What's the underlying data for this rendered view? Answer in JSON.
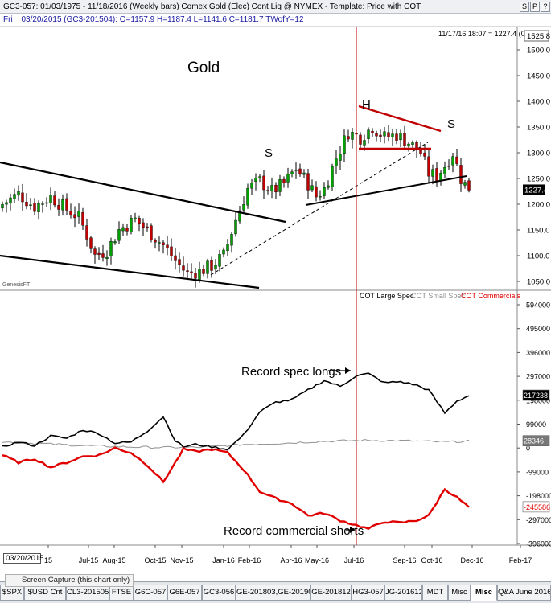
{
  "window": {
    "title": "GC3-057:  01/03/1975 - 11/18/2016  (Weekly bars)   Comex Gold (Elec) Cont Liq @ NYMEX  -  Template: Price with COT",
    "buttons": [
      "S",
      "P",
      "?"
    ]
  },
  "infobar": {
    "day": "Fri",
    "values": "03/20/2015 (GC3-201504):  O=1157.9  H=1187.4  L=1141.6  C=1181.7  TWofY=12"
  },
  "price_panel": {
    "header_stamp": "11/17/16 18:07 = 1227.4 (0.0)",
    "top_box": "1525.8",
    "last_price_box": "1227.4",
    "watermark": "GenesisFT",
    "annotations": {
      "title": "Gold",
      "head": "H",
      "left_shoulder": "S",
      "right_shoulder": "S"
    }
  },
  "cot_panel": {
    "legend": {
      "large": "COT Large Spec",
      "small": "COT Small Spec",
      "commercials": "COT Commercials"
    },
    "annotations": {
      "spec_longs": "Record spec longs",
      "comm_shorts": "Record commercial shorts"
    },
    "value_boxes": {
      "large": "217238",
      "small": "28346",
      "commercials": "-245586"
    }
  },
  "bottom": {
    "date_box": "03/20/2015",
    "screen_capture": "Screen Capture (this chart only)",
    "tabs": [
      "$SPX",
      "$USD Cnt",
      "CL3-201505",
      "FTSE",
      "G6C-057",
      "G6E-057",
      "GC3-056",
      "GE-201803,GE-201909",
      "GE-201812",
      "HG3-057",
      "JG-201612",
      "MDT",
      "Misc",
      "Misc",
      "Q&A June 2016"
    ],
    "active_tab": "Misc"
  },
  "colors": {
    "candle_up": "#00a000",
    "candle_down": "#c00000",
    "commercials": "#e00000",
    "small_spec": "#909090",
    "large_spec": "#000000",
    "marker_line": "#c00000",
    "label_blue": "#1a1aa0"
  },
  "chart_data": [
    {
      "type": "candlestick",
      "title": "Gold",
      "x_ticks": [
        "15",
        "Jul-15",
        "Aug-15",
        "Oct-15",
        "Nov-15",
        "Jan-16",
        "Feb-16",
        "Apr-16",
        "May-16",
        "Jul-16",
        "Sep-16",
        "Oct-16",
        "Dec-16",
        "Feb-17"
      ],
      "y_ticks": [
        1500,
        1450,
        1400,
        1350,
        1300,
        1250,
        1200,
        1150,
        1100,
        1050
      ],
      "ylim": [
        1040,
        1520
      ],
      "close_path": [
        [
          0,
          1200
        ],
        [
          4,
          1220
        ],
        [
          8,
          1195
        ],
        [
          12,
          1215
        ],
        [
          16,
          1190
        ],
        [
          19,
          1175
        ],
        [
          21,
          1140
        ],
        [
          23,
          1100
        ],
        [
          26,
          1110
        ],
        [
          29,
          1150
        ],
        [
          33,
          1170
        ],
        [
          36,
          1150
        ],
        [
          40,
          1120
        ],
        [
          43,
          1090
        ],
        [
          46,
          1065
        ],
        [
          49,
          1070
        ],
        [
          52,
          1080
        ],
        [
          55,
          1100
        ],
        [
          58,
          1170
        ],
        [
          61,
          1230
        ],
        [
          64,
          1245
        ],
        [
          67,
          1225
        ],
        [
          70,
          1240
        ],
        [
          73,
          1270
        ],
        [
          76,
          1240
        ],
        [
          78,
          1215
        ],
        [
          80,
          1230
        ],
        [
          83,
          1290
        ],
        [
          86,
          1340
        ],
        [
          89,
          1330
        ],
        [
          92,
          1350
        ],
        [
          95,
          1330
        ],
        [
          98,
          1335
        ],
        [
          101,
          1320
        ],
        [
          104,
          1300
        ],
        [
          106,
          1260
        ],
        [
          108,
          1255
        ],
        [
          110,
          1275
        ],
        [
          112,
          1300
        ],
        [
          114,
          1250
        ],
        [
          116,
          1227
        ]
      ],
      "last": 1227.4
    },
    {
      "type": "line",
      "series": [
        {
          "name": "COT Large Spec",
          "key": "large",
          "last": 217238
        },
        {
          "name": "COT Small Spec",
          "key": "small",
          "last": 28346
        },
        {
          "name": "COT Commercials",
          "key": "commercials",
          "last": -245586
        }
      ],
      "y_ticks": [
        594000,
        495000,
        396000,
        297000,
        198000,
        99000,
        0,
        -99000,
        -198000,
        -297000,
        -396000
      ],
      "ylim": [
        -400000,
        600000
      ],
      "large_path": [
        [
          0,
          5000
        ],
        [
          4,
          25000
        ],
        [
          8,
          10000
        ],
        [
          12,
          50000
        ],
        [
          16,
          40000
        ],
        [
          20,
          75000
        ],
        [
          24,
          60000
        ],
        [
          28,
          20000
        ],
        [
          32,
          25000
        ],
        [
          36,
          70000
        ],
        [
          40,
          130000
        ],
        [
          43,
          30000
        ],
        [
          45,
          5000
        ],
        [
          48,
          15000
        ],
        [
          52,
          5000
        ],
        [
          56,
          -5000
        ],
        [
          60,
          55000
        ],
        [
          64,
          150000
        ],
        [
          68,
          190000
        ],
        [
          72,
          200000
        ],
        [
          76,
          240000
        ],
        [
          80,
          280000
        ],
        [
          84,
          255000
        ],
        [
          88,
          300000
        ],
        [
          91,
          308000
        ],
        [
          95,
          270000
        ],
        [
          99,
          275000
        ],
        [
          103,
          260000
        ],
        [
          106,
          240000
        ],
        [
          110,
          145000
        ],
        [
          113,
          195000
        ],
        [
          116,
          217238
        ]
      ],
      "small_path": [
        [
          0,
          25000
        ],
        [
          10,
          18000
        ],
        [
          20,
          10000
        ],
        [
          30,
          5000
        ],
        [
          40,
          2000
        ],
        [
          50,
          3000
        ],
        [
          60,
          15000
        ],
        [
          70,
          20000
        ],
        [
          80,
          28000
        ],
        [
          90,
          32000
        ],
        [
          100,
          30000
        ],
        [
          110,
          25000
        ],
        [
          116,
          28346
        ]
      ],
      "comm_path": [
        [
          0,
          -30000
        ],
        [
          4,
          -60000
        ],
        [
          8,
          -45000
        ],
        [
          12,
          -80000
        ],
        [
          16,
          -60000
        ],
        [
          20,
          -35000
        ],
        [
          24,
          -30000
        ],
        [
          28,
          0
        ],
        [
          32,
          -20000
        ],
        [
          36,
          -70000
        ],
        [
          40,
          -140000
        ],
        [
          43,
          -60000
        ],
        [
          45,
          -5000
        ],
        [
          48,
          -15000
        ],
        [
          52,
          -5000
        ],
        [
          56,
          -20000
        ],
        [
          60,
          -90000
        ],
        [
          64,
          -180000
        ],
        [
          68,
          -210000
        ],
        [
          72,
          -230000
        ],
        [
          76,
          -280000
        ],
        [
          80,
          -270000
        ],
        [
          84,
          -300000
        ],
        [
          88,
          -320000
        ],
        [
          91,
          -335000
        ],
        [
          95,
          -305000
        ],
        [
          99,
          -310000
        ],
        [
          103,
          -300000
        ],
        [
          106,
          -280000
        ],
        [
          110,
          -170000
        ],
        [
          113,
          -205000
        ],
        [
          116,
          -245586
        ]
      ]
    }
  ]
}
